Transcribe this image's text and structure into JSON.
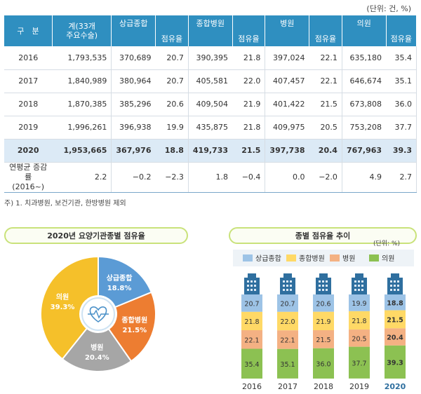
{
  "unit_note": "(단위: 건, %)",
  "table": {
    "headers": {
      "group": "구　분",
      "total": "계(33개\n주요수술)",
      "sangup": "상급종합",
      "jonghap": "종합병원",
      "byeongwon": "병원",
      "uiwon": "의원",
      "share": "점유율"
    },
    "rows": [
      {
        "year": "2016",
        "total": "1,793,535",
        "s_n": "370,689",
        "s_p": "20.7",
        "j_n": "390,395",
        "j_p": "21.8",
        "b_n": "397,024",
        "b_p": "22.1",
        "u_n": "635,180",
        "u_p": "35.4"
      },
      {
        "year": "2017",
        "total": "1,840,989",
        "s_n": "380,964",
        "s_p": "20.7",
        "j_n": "405,581",
        "j_p": "22.0",
        "b_n": "407,457",
        "b_p": "22.1",
        "u_n": "646,674",
        "u_p": "35.1"
      },
      {
        "year": "2018",
        "total": "1,870,385",
        "s_n": "385,296",
        "s_p": "20.6",
        "j_n": "409,504",
        "j_p": "21.9",
        "b_n": "401,422",
        "b_p": "21.5",
        "u_n": "673,808",
        "u_p": "36.0"
      },
      {
        "year": "2019",
        "total": "1,996,261",
        "s_n": "396,938",
        "s_p": "19.9",
        "j_n": "435,875",
        "j_p": "21.8",
        "b_n": "409,975",
        "b_p": "20.5",
        "u_n": "753,208",
        "u_p": "37.7"
      },
      {
        "year": "2020",
        "total": "1,953,665",
        "s_n": "367,976",
        "s_p": "18.8",
        "j_n": "419,733",
        "j_p": "21.5",
        "b_n": "397,738",
        "b_p": "20.4",
        "u_n": "767,963",
        "u_p": "39.3"
      }
    ],
    "avg_row": {
      "label": "연평균 증감률\n(2016~)",
      "total": "2.2",
      "s_n": "−0.2",
      "s_p": "−2.3",
      "j_n": "1.8",
      "j_p": "−0.4",
      "b_n": "0.0",
      "b_p": "−2.0",
      "u_n": "4.9",
      "u_p": "2.7"
    }
  },
  "footnote": "주) 1. 치과병원, 보건기관, 한방병원 제외",
  "colors": {
    "sangup": "#5b9bd5",
    "jonghap": "#ed7d31",
    "byeongwon": "#a6a6a6",
    "uiwon": "#f5c02a",
    "bar_sangup": "#9dc3e6",
    "bar_jonghap": "#ffd966",
    "bar_byeongwon": "#f4b183",
    "bar_uiwon": "#8cc152",
    "header": "#2f8fc0"
  },
  "chart_data": [
    {
      "type": "pie",
      "title": "2020년 요양기관종별 점유율",
      "labels": [
        "상급종합",
        "종합병원",
        "병원",
        "의원"
      ],
      "values": [
        18.8,
        21.5,
        20.4,
        39.3
      ],
      "value_labels": [
        "18.8%",
        "21.5%",
        "20.4%",
        "39.3%"
      ],
      "center_icon": "heart-pulse-icon"
    },
    {
      "type": "bar",
      "stacked": true,
      "title": "종별 점유율 추이",
      "unit_note": "(단위: %)",
      "categories": [
        "2016",
        "2017",
        "2018",
        "2019",
        "2020"
      ],
      "series": [
        {
          "name": "상급종합",
          "values": [
            20.7,
            20.7,
            20.6,
            19.9,
            18.8
          ]
        },
        {
          "name": "종합병원",
          "values": [
            21.8,
            22.0,
            21.9,
            21.8,
            21.5
          ]
        },
        {
          "name": "병원",
          "values": [
            22.1,
            22.1,
            21.5,
            20.5,
            20.4
          ]
        },
        {
          "name": "의원",
          "values": [
            35.4,
            35.1,
            36.0,
            37.7,
            39.3
          ]
        }
      ],
      "value_labels": [
        [
          "20.7",
          "20.7",
          "20.6",
          "19.9",
          "18.8"
        ],
        [
          "21.8",
          "22.0",
          "21.9",
          "21.8",
          "21.5"
        ],
        [
          "22.1",
          "22.1",
          "21.5",
          "20.5",
          "20.4"
        ],
        [
          "35.4",
          "35.1",
          "36.0",
          "37.7",
          "39.3"
        ]
      ],
      "ylim": [
        0,
        100
      ],
      "legend": "top",
      "highlight_category": "2020",
      "bar_top_icon": "hospital-building-icon"
    }
  ]
}
